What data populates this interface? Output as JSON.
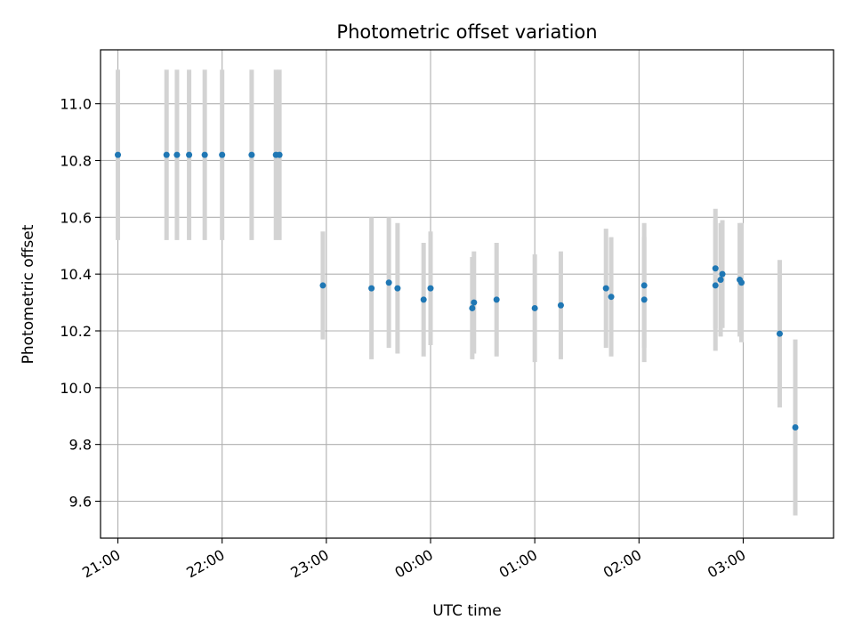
{
  "chart_data": {
    "type": "scatter",
    "title": "Photometric offset variation",
    "xlabel": "UTC time",
    "ylabel": "Photometric offset",
    "xlim": [
      "20:50",
      "03:52"
    ],
    "ylim": [
      9.47,
      11.19
    ],
    "grid": true,
    "x_ticks": [
      "21:00",
      "22:00",
      "23:00",
      "00:00",
      "01:00",
      "02:00",
      "03:00"
    ],
    "y_ticks": [
      9.6,
      9.8,
      10.0,
      10.2,
      10.4,
      10.6,
      10.8,
      11.0
    ],
    "y_tick_labels": [
      "9.6",
      "9.8",
      "10.0",
      "10.2",
      "10.4",
      "10.6",
      "10.8",
      "11.0"
    ],
    "colors": {
      "marker": "#1f77b4",
      "errorbar": "#d3d3d3",
      "grid": "#b0b0b0"
    },
    "points": [
      {
        "x": "21:00",
        "y": 10.82,
        "yerr": 0.3
      },
      {
        "x": "21:28",
        "y": 10.82,
        "yerr": 0.3
      },
      {
        "x": "21:34",
        "y": 10.82,
        "yerr": 0.3
      },
      {
        "x": "21:41",
        "y": 10.82,
        "yerr": 0.3
      },
      {
        "x": "21:50",
        "y": 10.82,
        "yerr": 0.3
      },
      {
        "x": "22:00",
        "y": 10.82,
        "yerr": 0.3
      },
      {
        "x": "22:17",
        "y": 10.82,
        "yerr": 0.3
      },
      {
        "x": "22:31",
        "y": 10.82,
        "yerr": 0.3
      },
      {
        "x": "22:33",
        "y": 10.82,
        "yerr": 0.3
      },
      {
        "x": "22:58",
        "y": 10.36,
        "yerr": 0.19
      },
      {
        "x": "23:26",
        "y": 10.35,
        "yerr": 0.25
      },
      {
        "x": "23:36",
        "y": 10.37,
        "yerr": 0.23
      },
      {
        "x": "23:41",
        "y": 10.35,
        "yerr": 0.23
      },
      {
        "x": "23:56",
        "y": 10.31,
        "yerr": 0.2
      },
      {
        "x": "00:00",
        "y": 10.35,
        "yerr": 0.2
      },
      {
        "x": "00:24",
        "y": 10.28,
        "yerr": 0.18
      },
      {
        "x": "00:25",
        "y": 10.3,
        "yerr": 0.18
      },
      {
        "x": "00:38",
        "y": 10.31,
        "yerr": 0.2
      },
      {
        "x": "01:00",
        "y": 10.28,
        "yerr": 0.19
      },
      {
        "x": "01:15",
        "y": 10.29,
        "yerr": 0.19
      },
      {
        "x": "01:41",
        "y": 10.35,
        "yerr": 0.21
      },
      {
        "x": "01:44",
        "y": 10.32,
        "yerr": 0.21
      },
      {
        "x": "02:03",
        "y": 10.36,
        "yerr": 0.22
      },
      {
        "x": "02:03",
        "y": 10.31,
        "yerr": 0.22
      },
      {
        "x": "02:44",
        "y": 10.42,
        "yerr": 0.21
      },
      {
        "x": "02:44",
        "y": 10.36,
        "yerr": 0.23
      },
      {
        "x": "02:47",
        "y": 10.38,
        "yerr": 0.2
      },
      {
        "x": "02:48",
        "y": 10.4,
        "yerr": 0.19
      },
      {
        "x": "02:58",
        "y": 10.38,
        "yerr": 0.2
      },
      {
        "x": "02:59",
        "y": 10.37,
        "yerr": 0.21
      },
      {
        "x": "03:21",
        "y": 10.19,
        "yerr": 0.26
      },
      {
        "x": "03:30",
        "y": 9.86,
        "yerr": 0.31
      }
    ]
  }
}
